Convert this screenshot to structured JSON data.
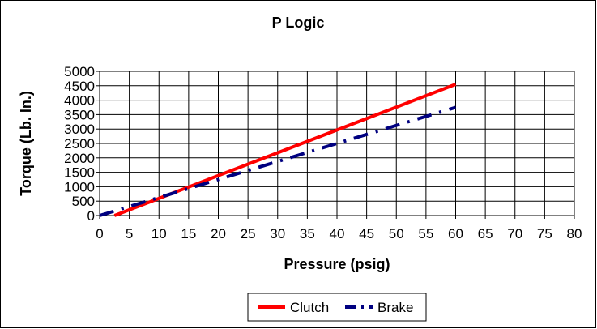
{
  "chart_data": {
    "type": "line",
    "title": "P Logic",
    "xlabel": "Pressure (psig)",
    "ylabel": "Torque (Lb. In.)",
    "xlim": [
      0,
      80
    ],
    "ylim": [
      0,
      5000
    ],
    "xticks": [
      0,
      5,
      10,
      15,
      20,
      25,
      30,
      35,
      40,
      45,
      50,
      55,
      60,
      65,
      70,
      75,
      80
    ],
    "yticks": [
      0,
      500,
      1000,
      1500,
      2000,
      2500,
      3000,
      3500,
      4000,
      4500,
      5000
    ],
    "grid": true,
    "legend_position": "bottom-center",
    "series": [
      {
        "name": "Clutch",
        "color": "#ff0000",
        "style": "solid",
        "x": [
          2.5,
          60
        ],
        "y": [
          0,
          4550
        ]
      },
      {
        "name": "Brake",
        "color": "#000080",
        "style": "dash-dot",
        "x": [
          0,
          60
        ],
        "y": [
          0,
          3750
        ]
      }
    ]
  }
}
